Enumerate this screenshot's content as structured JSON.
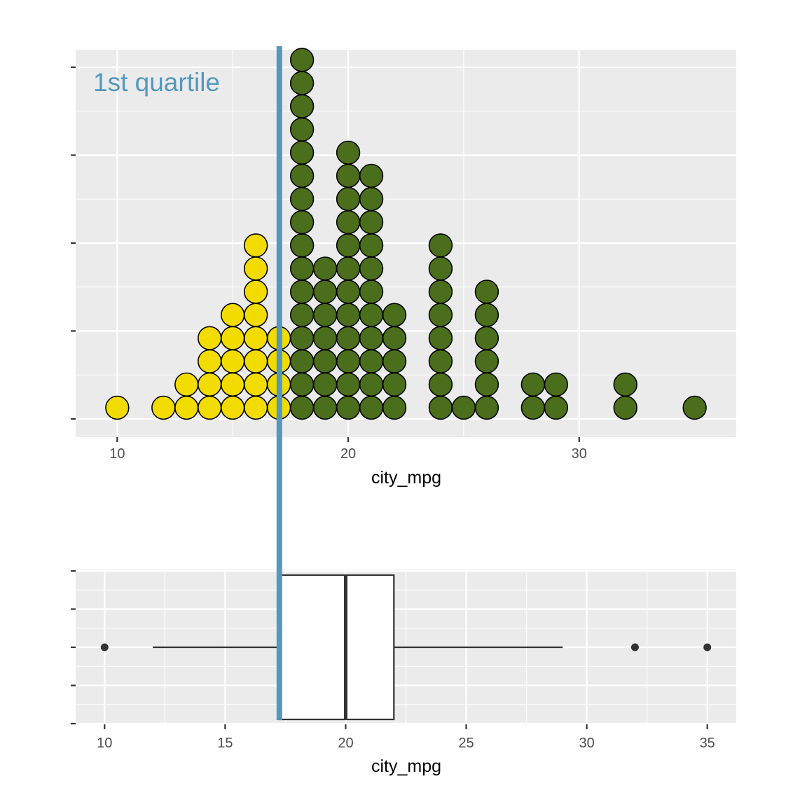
{
  "chart_data": [
    {
      "type": "dotplot",
      "panel": "top",
      "xlabel": "city_mpg",
      "ylabel": "",
      "xlim": [
        8.2,
        36.8
      ],
      "x_ticks": [
        10,
        20,
        30
      ],
      "x_tick_labels": [
        "10",
        "20",
        "30"
      ],
      "y_ticks_unlabeled": 5,
      "grid": true,
      "annotation": "1st quartile",
      "quartile_line_x": 17.25,
      "colors": {
        "below_q1": "#f2dc00",
        "above_q1": "#4a6e1b",
        "quartile_line": "#5498bf"
      },
      "stacks": [
        {
          "x": 10,
          "count": 1,
          "group": "below_q1"
        },
        {
          "x": 12,
          "count": 1,
          "group": "below_q1"
        },
        {
          "x": 13,
          "count": 2,
          "group": "below_q1"
        },
        {
          "x": 14,
          "count": 4,
          "group": "below_q1"
        },
        {
          "x": 15,
          "count": 5,
          "group": "below_q1"
        },
        {
          "x": 16,
          "count": 8,
          "group": "below_q1"
        },
        {
          "x": 17,
          "count": 4,
          "group": "below_q1"
        },
        {
          "x": 18,
          "count": 16,
          "group": "above_q1"
        },
        {
          "x": 19,
          "count": 7,
          "group": "above_q1"
        },
        {
          "x": 20,
          "count": 12,
          "group": "above_q1"
        },
        {
          "x": 21,
          "count": 11,
          "group": "above_q1"
        },
        {
          "x": 22,
          "count": 5,
          "group": "above_q1"
        },
        {
          "x": 24,
          "count": 8,
          "group": "above_q1"
        },
        {
          "x": 25,
          "count": 1,
          "group": "above_q1"
        },
        {
          "x": 26,
          "count": 6,
          "group": "above_q1"
        },
        {
          "x": 28,
          "count": 2,
          "group": "above_q1"
        },
        {
          "x": 29,
          "count": 2,
          "group": "above_q1"
        },
        {
          "x": 32,
          "count": 2,
          "group": "above_q1"
        },
        {
          "x": 35,
          "count": 1,
          "group": "above_q1"
        }
      ]
    },
    {
      "type": "boxplot",
      "panel": "bottom",
      "xlabel": "city_mpg",
      "ylabel": "",
      "xlim": [
        8.8,
        36.2
      ],
      "x_ticks": [
        10,
        15,
        20,
        25,
        30,
        35
      ],
      "x_tick_labels": [
        "10",
        "15",
        "20",
        "25",
        "30",
        "35"
      ],
      "y_ticks_unlabeled": 5,
      "grid": true,
      "box": {
        "q1": 17.25,
        "median": 20,
        "q3": 22,
        "whisker_low": 12,
        "whisker_high": 29,
        "outliers": [
          10,
          32,
          35
        ]
      }
    }
  ]
}
